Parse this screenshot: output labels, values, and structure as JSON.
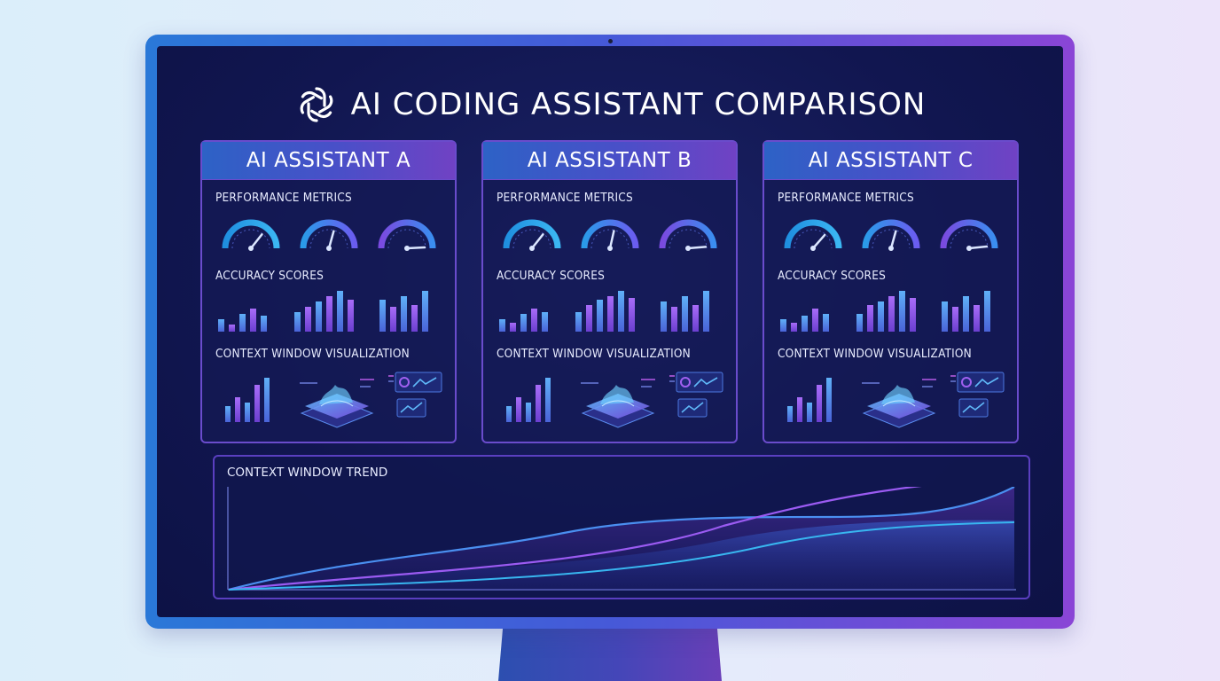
{
  "header": {
    "title": "AI CODING ASSISTANT COMPARISON",
    "logo_icon": "openai-logo-icon"
  },
  "labels": {
    "performance": "PERFORMANCE METRICS",
    "accuracy": "ACCURACY SCORES",
    "context": "CONTEXT WINDOW VISUALIZATION",
    "trend": "CONTEXT WINDOW TREND"
  },
  "assistants": [
    {
      "name": "AI ASSISTANT A"
    },
    {
      "name": "AI ASSISTANT B"
    },
    {
      "name": "AI ASSISTANT C"
    }
  ],
  "colors": {
    "accent_blue": "#3aa6f0",
    "accent_purple": "#8b5cf6",
    "panel_border": "#6a4ccc",
    "screen_bg": "#111650"
  }
}
